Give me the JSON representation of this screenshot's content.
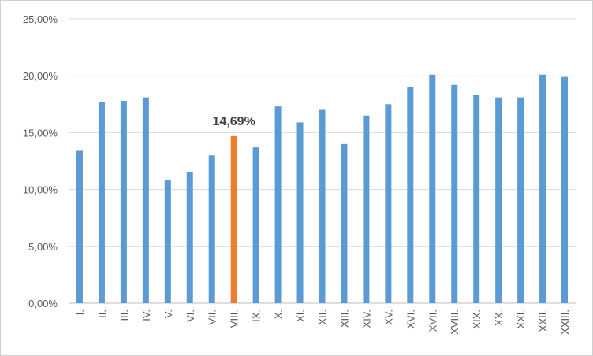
{
  "chart_data": {
    "type": "bar",
    "categories": [
      "I.",
      "II.",
      "III.",
      "IV.",
      "V.",
      "VI.",
      "VII.",
      "VIII.",
      "IX.",
      "X.",
      "XI.",
      "XII.",
      "XIII.",
      "XIV.",
      "XV.",
      "XVI.",
      "XVII.",
      "XVIII.",
      "XIX.",
      "XX.",
      "XXI.",
      "XXII.",
      "XXIII."
    ],
    "values": [
      13.4,
      17.7,
      17.8,
      18.1,
      10.8,
      11.5,
      13.0,
      14.69,
      13.7,
      17.3,
      15.9,
      17.0,
      14.0,
      16.5,
      17.5,
      19.0,
      20.1,
      19.2,
      18.3,
      18.1,
      18.1,
      20.1,
      19.9
    ],
    "ylim": [
      0,
      25
    ],
    "yticks": [
      "0,00%",
      "5,00%",
      "10,00%",
      "15,00%",
      "20,00%",
      "25,00%"
    ],
    "grid": true,
    "colors": {
      "default": "#5B9BD5",
      "highlight": "#ED7D31",
      "grid": "#D9D9D9",
      "axis": "#BFBFBF"
    },
    "highlight_index": 7,
    "data_label": "14,69%"
  }
}
